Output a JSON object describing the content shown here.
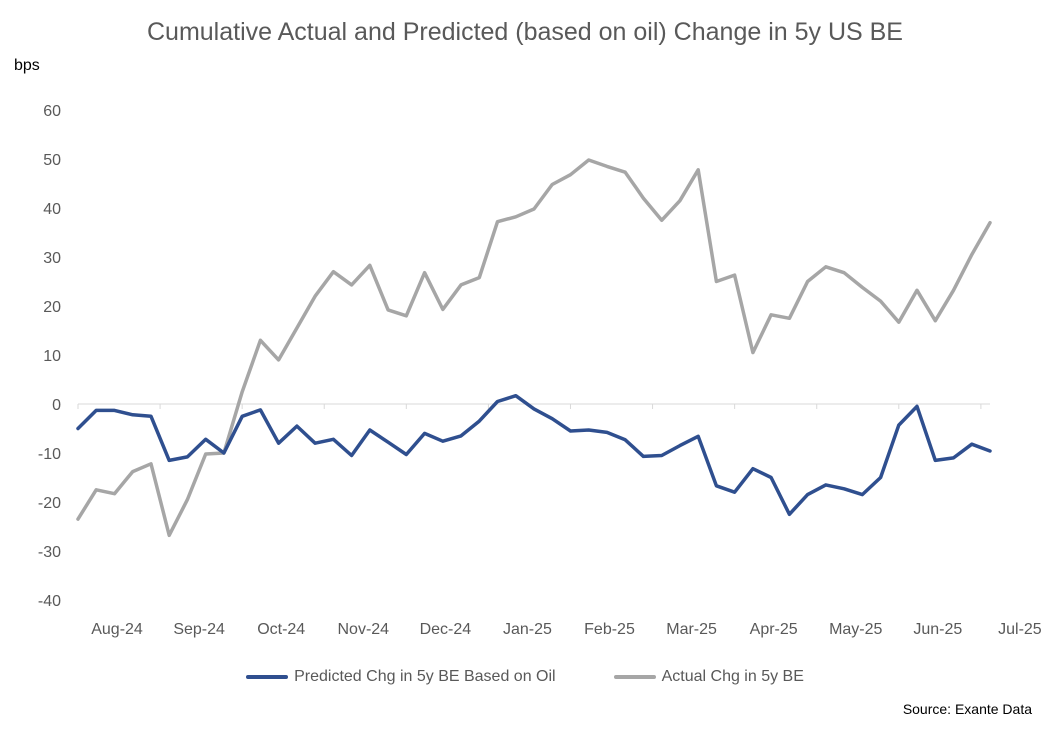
{
  "chart_data": {
    "type": "line",
    "title": "Cumulative Actual and Predicted (based on oil) Change in 5y US BE",
    "ylabel": "bps",
    "xlabel": "",
    "ylim": [
      -40,
      60
    ],
    "yticks": [
      -40,
      -30,
      -20,
      -10,
      0,
      10,
      20,
      30,
      40,
      50,
      60
    ],
    "x_tick_labels": [
      "Aug-24",
      "Sep-24",
      "Oct-24",
      "Nov-24",
      "Dec-24",
      "Jan-25",
      "Feb-25",
      "Mar-25",
      "Apr-25",
      "May-25",
      "Jun-25",
      "Jul-25"
    ],
    "points_per_month": 4.5,
    "grid": false,
    "legend_position": "bottom",
    "series": [
      {
        "name": "Predicted Chg in 5y BE Based on Oil",
        "color": "#2F4F8F",
        "values": [
          -5,
          -1.3,
          -1.3,
          -2.2,
          -2.5,
          -11.5,
          -10.8,
          -7.2,
          -10,
          -2.5,
          -1.2,
          -8,
          -4.5,
          -8,
          -7.2,
          -10.5,
          -5.3,
          -7.8,
          -10.3,
          -6,
          -7.6,
          -6.5,
          -3.5,
          0.5,
          1.7,
          -1,
          -3,
          -5.5,
          -5.3,
          -5.8,
          -7.3,
          -10.7,
          -10.5,
          -8.5,
          -6.6,
          -16.7,
          -18,
          -13.2,
          -15,
          -22.5,
          -18.5,
          -16.5,
          -17.3,
          -18.5,
          -15,
          -4.3,
          -0.5,
          -11.5,
          -11,
          -8.2,
          -9.6
        ]
      },
      {
        "name": "Actual Chg in 5y BE",
        "color": "#A6A6A6",
        "values": [
          -23.5,
          -17.5,
          -18.3,
          -13.8,
          -12.2,
          -26.8,
          -19.5,
          -10.2,
          -10,
          2.5,
          13,
          9,
          15.5,
          22,
          27,
          24.3,
          28.3,
          19.2,
          18,
          26.8,
          19.3,
          24.3,
          25.8,
          37.2,
          38.2,
          39.8,
          44.8,
          46.8,
          49.8,
          48.5,
          47.3,
          42,
          37.5,
          41.5,
          47.8,
          25,
          26.3,
          10.5,
          18.2,
          17.5,
          25,
          28,
          26.8,
          23.8,
          21,
          16.7,
          23.2,
          17,
          23.2,
          30.5,
          37
        ]
      }
    ]
  },
  "source": "Source: Exante Data"
}
